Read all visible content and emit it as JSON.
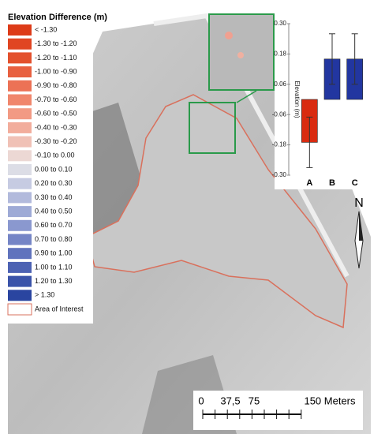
{
  "legend": {
    "title": "Elevation Difference (m)",
    "entries": [
      {
        "label": "< -1.30",
        "color": "#dd3b18"
      },
      {
        "label": "-1.30 to -1.20",
        "color": "#e04522"
      },
      {
        "label": "-1.20 to -1.10",
        "color": "#e3512d"
      },
      {
        "label": "-1.00 to -0.90",
        "color": "#e86040"
      },
      {
        "label": "-0.90 to -0.80",
        "color": "#ec7256"
      },
      {
        "label": "-0.70 to -0.60",
        "color": "#f0866c"
      },
      {
        "label": "-0.60 to -0.50",
        "color": "#f29a84"
      },
      {
        "label": "-0.40 to -0.30",
        "color": "#f2ad9c"
      },
      {
        "label": "-0.30 to -0.20",
        "color": "#f0c1b6"
      },
      {
        "label": "-0.10 to 0.00",
        "color": "#ecd8d4"
      },
      {
        "label": "0.00 to 0.10",
        "color": "#dcdde6"
      },
      {
        "label": "0.20 to 0.30",
        "color": "#c6cbe2"
      },
      {
        "label": "0.30 to 0.40",
        "color": "#b2badc"
      },
      {
        "label": "0.40 to 0.50",
        "color": "#9eaad6"
      },
      {
        "label": "0.60 to 0.70",
        "color": "#8a98cf"
      },
      {
        "label": "0.70 to 0.80",
        "color": "#7585c6"
      },
      {
        "label": "0.90 to 1.00",
        "color": "#6073bd"
      },
      {
        "label": "1.00 to 1.10",
        "color": "#4c62b3"
      },
      {
        "label": "1.20 to 1.30",
        "color": "#3a53a9"
      },
      {
        "label": "> 1.30",
        "color": "#2a45a0"
      },
      {
        "label": "Area of Interest",
        "color": "#d9705c",
        "outline": true
      }
    ]
  },
  "north_label": "N",
  "scale_bar": {
    "labels": [
      "0",
      "37,5",
      "75",
      "150 Meters"
    ]
  },
  "chart_data": {
    "type": "bar",
    "ylabel": "Elevation (m)",
    "categories": [
      "A",
      "B",
      "C"
    ],
    "values": [
      -0.17,
      0.16,
      0.16
    ],
    "errors": [
      0.1,
      0.1,
      0.1
    ],
    "colors": [
      "#d92b10",
      "#2236a0",
      "#2236a0"
    ],
    "ylim": [
      -0.3,
      0.3
    ],
    "yticks": [
      {
        "value": 0.3,
        "label": "0.30"
      },
      0.18,
      0.06,
      -0.06,
      -0.18,
      {
        "value": -0.3,
        "label": "-0.30"
      }
    ]
  }
}
